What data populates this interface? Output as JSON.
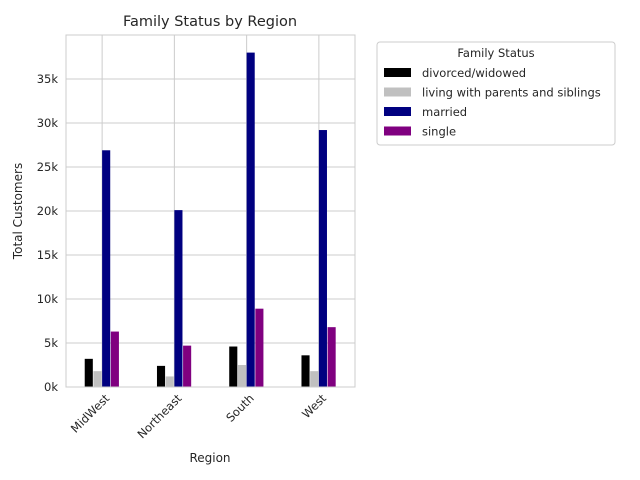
{
  "chart_data": {
    "type": "bar",
    "title": "Family Status by Region",
    "xlabel": "Region",
    "ylabel": "Total Customers",
    "categories": [
      "MidWest",
      "Northeast",
      "South",
      "West"
    ],
    "ylim": [
      0,
      40000
    ],
    "yticks": [
      0,
      5000,
      10000,
      15000,
      20000,
      25000,
      30000,
      35000
    ],
    "ytick_labels": [
      "0k",
      "5k",
      "10k",
      "15k",
      "20k",
      "25k",
      "30k",
      "35k"
    ],
    "grid": true,
    "legend": {
      "title": "Family Status",
      "position": "outside-top-right"
    },
    "series": [
      {
        "name": "divorced/widowed",
        "color": "#000000",
        "values": [
          3200,
          2400,
          4600,
          3600
        ]
      },
      {
        "name": "living with parents and siblings",
        "color": "#c0c0c0",
        "values": [
          1800,
          1200,
          2500,
          1800
        ]
      },
      {
        "name": "married",
        "color": "#000080",
        "values": [
          26900,
          20100,
          38000,
          29200
        ]
      },
      {
        "name": "single",
        "color": "#800080",
        "values": [
          6300,
          4700,
          8900,
          6800
        ]
      }
    ]
  }
}
